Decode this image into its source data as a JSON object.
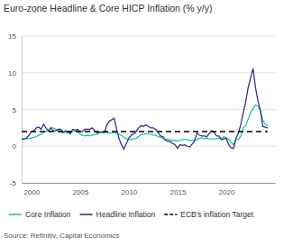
{
  "chart_data": {
    "type": "line",
    "title": "Euro-zone Headline & Core HICP Inflation (% y/y)",
    "source": "Source: Refinitiv, Capital Economics",
    "x": [
      1999,
      1999.25,
      1999.5,
      1999.75,
      2000,
      2000.25,
      2000.5,
      2000.75,
      2001,
      2001.25,
      2001.5,
      2001.75,
      2002,
      2002.25,
      2002.5,
      2002.75,
      2003,
      2003.25,
      2003.5,
      2003.75,
      2004,
      2004.25,
      2004.5,
      2004.75,
      2005,
      2005.25,
      2005.5,
      2005.75,
      2006,
      2006.25,
      2006.5,
      2006.75,
      2007,
      2007.25,
      2007.5,
      2007.75,
      2008,
      2008.25,
      2008.5,
      2008.75,
      2009,
      2009.25,
      2009.5,
      2009.75,
      2010,
      2010.25,
      2010.5,
      2010.75,
      2011,
      2011.25,
      2011.5,
      2011.75,
      2012,
      2012.25,
      2012.5,
      2012.75,
      2013,
      2013.25,
      2013.5,
      2013.75,
      2014,
      2014.25,
      2014.5,
      2014.75,
      2015,
      2015.25,
      2015.5,
      2015.75,
      2016,
      2016.25,
      2016.5,
      2016.75,
      2017,
      2017.25,
      2017.5,
      2017.75,
      2018,
      2018.25,
      2018.5,
      2018.75,
      2019,
      2019.25,
      2019.5,
      2019.75,
      2020,
      2020.25,
      2020.5,
      2020.75,
      2021,
      2021.25,
      2021.5,
      2021.75,
      2022,
      2022.25,
      2022.5,
      2022.75,
      2023,
      2023.25,
      2023.5,
      2023.75,
      2024,
      2024.25
    ],
    "series": [
      {
        "name": "Core Inflation",
        "color": "#19c7a3",
        "line_style": "solid",
        "values": [
          1.1,
          1.0,
          1.0,
          1.1,
          1.1,
          1.2,
          1.3,
          1.5,
          1.6,
          1.9,
          2.0,
          2.1,
          2.5,
          2.5,
          2.3,
          2.2,
          2.0,
          1.8,
          1.9,
          1.8,
          2.0,
          2.0,
          2.0,
          2.0,
          1.6,
          1.5,
          1.4,
          1.5,
          1.4,
          1.5,
          1.6,
          1.6,
          1.9,
          1.9,
          1.9,
          1.9,
          1.8,
          1.8,
          1.9,
          1.8,
          1.6,
          1.5,
          1.2,
          1.0,
          0.9,
          0.9,
          1.0,
          1.1,
          1.3,
          1.6,
          1.6,
          1.7,
          1.7,
          1.6,
          1.5,
          1.5,
          1.3,
          1.2,
          1.1,
          0.9,
          1.0,
          0.8,
          0.8,
          0.8,
          0.7,
          0.8,
          0.9,
          0.9,
          0.9,
          0.8,
          0.8,
          0.8,
          0.9,
          1.1,
          1.2,
          1.0,
          1.1,
          1.0,
          1.0,
          1.0,
          1.0,
          1.1,
          1.0,
          1.3,
          1.2,
          0.9,
          0.5,
          0.2,
          1.0,
          0.9,
          1.4,
          2.6,
          2.8,
          3.7,
          4.6,
          5.1,
          5.6,
          5.5,
          4.8,
          3.5,
          3.0,
          2.8
        ]
      },
      {
        "name": "Headline Inflation",
        "color": "#3b2f91",
        "line_style": "solid",
        "values": [
          0.9,
          1.0,
          1.1,
          1.5,
          2.0,
          2.1,
          2.5,
          2.6,
          2.3,
          3.0,
          2.5,
          2.1,
          2.5,
          2.1,
          2.1,
          2.3,
          2.3,
          1.9,
          2.1,
          2.0,
          1.7,
          2.3,
          2.2,
          2.3,
          2.0,
          2.0,
          2.3,
          2.3,
          2.3,
          2.5,
          2.1,
          1.8,
          1.9,
          1.9,
          1.9,
          2.9,
          3.4,
          3.6,
          3.8,
          2.3,
          1.0,
          0.2,
          -0.4,
          0.4,
          1.1,
          1.5,
          1.7,
          2.0,
          2.5,
          2.8,
          2.7,
          2.9,
          2.7,
          2.5,
          2.5,
          2.3,
          1.9,
          1.4,
          1.3,
          0.8,
          0.7,
          0.6,
          0.4,
          0.2,
          -0.3,
          0.2,
          0.1,
          0.2,
          0.0,
          -0.1,
          0.3,
          0.7,
          1.8,
          1.5,
          1.4,
          1.4,
          1.3,
          1.7,
          2.1,
          1.9,
          1.4,
          1.4,
          0.9,
          1.0,
          1.1,
          0.2,
          -0.2,
          -0.3,
          1.1,
          1.8,
          3.0,
          4.6,
          6.1,
          8.0,
          9.3,
          10.6,
          8.0,
          6.2,
          4.9,
          2.7,
          2.6,
          2.5
        ]
      },
      {
        "name": "ECB's inflation Target",
        "color": "#000000",
        "line_style": "dashed",
        "values": [
          2,
          2,
          2,
          2,
          2,
          2,
          2,
          2,
          2,
          2,
          2,
          2,
          2,
          2,
          2,
          2,
          2,
          2,
          2,
          2,
          2,
          2,
          2,
          2,
          2,
          2,
          2,
          2,
          2,
          2,
          2,
          2,
          2,
          2,
          2,
          2,
          2,
          2,
          2,
          2,
          2,
          2,
          2,
          2,
          2,
          2,
          2,
          2,
          2,
          2,
          2,
          2,
          2,
          2,
          2,
          2,
          2,
          2,
          2,
          2,
          2,
          2,
          2,
          2,
          2,
          2,
          2,
          2,
          2,
          2,
          2,
          2,
          2,
          2,
          2,
          2,
          2,
          2,
          2,
          2,
          2,
          2,
          2,
          2,
          2,
          2,
          2,
          2,
          2,
          2,
          2,
          2,
          2,
          2,
          2,
          2,
          2,
          2,
          2,
          2,
          2,
          2
        ]
      }
    ],
    "xlim": [
      1999,
      2025
    ],
    "xticks": [
      2000,
      2005,
      2010,
      2015,
      2020
    ],
    "ylim": [
      -5,
      15
    ],
    "yticks": [
      -5,
      0,
      5,
      10,
      15
    ],
    "grid": true,
    "legend": "bottom"
  }
}
